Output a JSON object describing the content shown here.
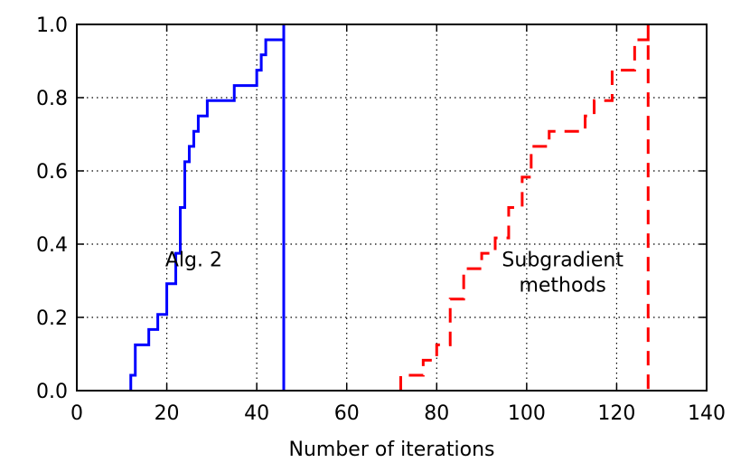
{
  "chart_data": {
    "type": "line",
    "title": "",
    "xlabel": "Number of iterations",
    "ylabel": "",
    "xlim": [
      0,
      140
    ],
    "ylim": [
      0,
      1
    ],
    "xticks": [
      0,
      20,
      40,
      60,
      80,
      100,
      120,
      140
    ],
    "yticks": [
      0.0,
      0.2,
      0.4,
      0.6,
      0.8,
      1.0
    ],
    "xtick_labels": [
      "0",
      "20",
      "40",
      "60",
      "80",
      "100",
      "120",
      "140"
    ],
    "ytick_labels": [
      "0.0",
      "0.2",
      "0.4",
      "0.6",
      "0.8",
      "1.0"
    ],
    "grid": true,
    "legend": "none",
    "series": [
      {
        "style": "solid-step",
        "color": "#0000ff",
        "x": [
          12,
          13,
          16,
          18,
          20,
          22,
          23,
          24,
          25,
          26,
          27,
          29,
          35,
          40,
          41,
          42,
          46,
          46
        ],
        "y": [
          0.042,
          0.125,
          0.167,
          0.208,
          0.292,
          0.375,
          0.5,
          0.625,
          0.667,
          0.708,
          0.75,
          0.792,
          0.833,
          0.875,
          0.917,
          0.958,
          1.0,
          0.0
        ]
      },
      {
        "style": "dashed-step",
        "color": "#ff0000",
        "x": [
          72,
          77,
          80,
          83,
          86,
          90,
          93,
          96,
          99,
          101,
          105,
          113,
          115,
          119,
          124,
          127,
          127
        ],
        "y": [
          0.042,
          0.083,
          0.125,
          0.25,
          0.333,
          0.375,
          0.417,
          0.5,
          0.583,
          0.667,
          0.708,
          0.75,
          0.792,
          0.875,
          0.958,
          1.0,
          0.0
        ]
      }
    ],
    "annotations": [
      {
        "text": "Alg. 2",
        "x": 26,
        "y": 0.33
      },
      {
        "lines": [
          "Subgradient",
          "methods"
        ],
        "x": 108,
        "y": 0.33
      }
    ]
  }
}
